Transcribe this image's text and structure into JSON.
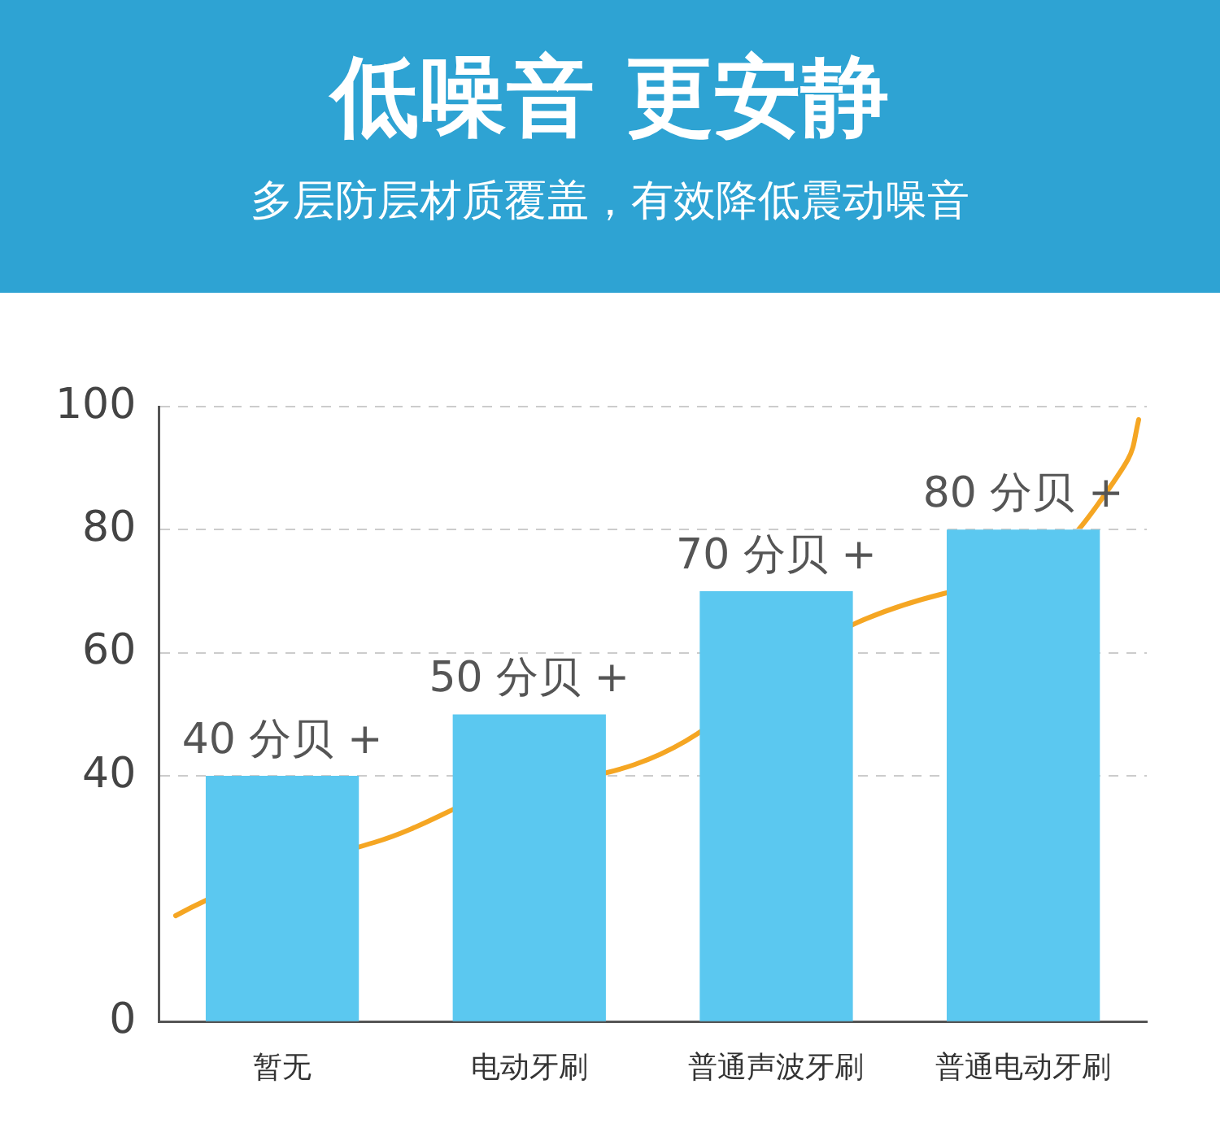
{
  "chart_data": {
    "type": "bar",
    "title": "低噪音 更安静",
    "subtitle": "多层防层材质覆盖，有效降低震动噪音",
    "categories": [
      "暂无",
      "电动牙刷",
      "普通声波牙刷",
      "普通电动牙刷"
    ],
    "values": [
      40,
      50,
      70,
      80
    ],
    "value_labels": [
      "40 分贝 +",
      "50 分贝 +",
      "70 分贝 +",
      "80 分贝 +"
    ],
    "color": "#5bc8f0",
    "ylim": [
      0,
      100
    ],
    "yticks": [
      0,
      40,
      60,
      80,
      100
    ],
    "grid": "y"
  }
}
